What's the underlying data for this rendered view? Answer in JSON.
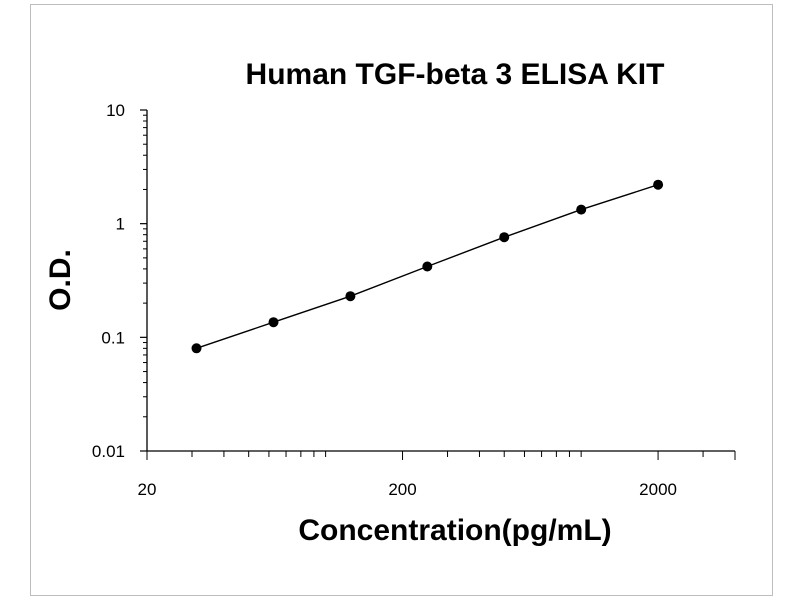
{
  "chart_data": {
    "type": "line",
    "title": "Human TGF-beta 3 ELISA KIT",
    "xlabel": "Concentration(pg/mL)",
    "ylabel": "O.D.",
    "x_scale": "log",
    "y_scale": "log",
    "xlim": [
      20,
      4000
    ],
    "ylim": [
      0.01,
      10
    ],
    "x_ticks": [
      "20",
      "200",
      "2000"
    ],
    "y_ticks": [
      "10",
      "1",
      "0.1",
      "0.01"
    ],
    "grid": false,
    "legend": "none",
    "series": [
      {
        "x": [
          31.25,
          62.5,
          125,
          250,
          500,
          1000,
          2000
        ],
        "y": [
          0.08,
          0.136,
          0.23,
          0.42,
          0.76,
          1.33,
          2.2
        ]
      }
    ],
    "colors": {
      "line": "#000000",
      "marker": "#000000"
    }
  }
}
